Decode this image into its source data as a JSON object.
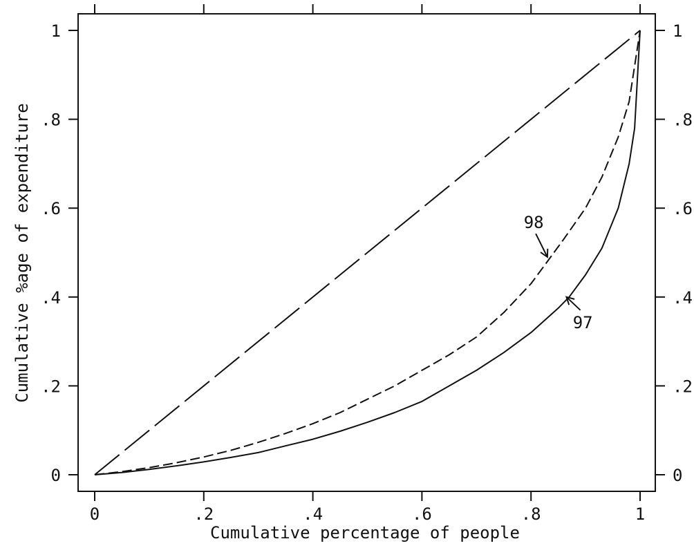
{
  "chart_data": {
    "type": "line",
    "xlabel": "Cumulative percentage of people",
    "ylabel": "Cumulative %age of expenditure",
    "xlim": [
      0,
      1
    ],
    "ylim": [
      0,
      1
    ],
    "x_ticks": [
      0,
      0.2,
      0.4,
      0.6,
      0.8,
      1
    ],
    "x_tick_labels": [
      "0",
      ".2",
      ".4",
      ".6",
      ".8",
      "1"
    ],
    "y_ticks": [
      0,
      0.2,
      0.4,
      0.6,
      0.8,
      1
    ],
    "y_tick_labels": [
      "0",
      ".2",
      ".4",
      ".6",
      ".8",
      "1"
    ],
    "grid": false,
    "mirror_axes": true,
    "series": [
      {
        "key": "equality",
        "style": "long-dash",
        "x": [
          0,
          1
        ],
        "y": [
          0,
          1
        ]
      },
      {
        "key": "98",
        "style": "short-dash",
        "x": [
          0,
          0.05,
          0.1,
          0.15,
          0.2,
          0.25,
          0.3,
          0.35,
          0.4,
          0.45,
          0.5,
          0.55,
          0.6,
          0.65,
          0.7,
          0.75,
          0.8,
          0.83,
          0.86,
          0.9,
          0.93,
          0.96,
          0.98,
          1
        ],
        "y": [
          0,
          0.007,
          0.016,
          0.027,
          0.04,
          0.055,
          0.073,
          0.093,
          0.115,
          0.14,
          0.17,
          0.2,
          0.235,
          0.27,
          0.31,
          0.365,
          0.43,
          0.48,
          0.53,
          0.6,
          0.67,
          0.76,
          0.84,
          1
        ]
      },
      {
        "key": "97",
        "style": "solid",
        "x": [
          0,
          0.05,
          0.1,
          0.15,
          0.2,
          0.25,
          0.3,
          0.35,
          0.4,
          0.45,
          0.5,
          0.55,
          0.6,
          0.65,
          0.7,
          0.75,
          0.8,
          0.85,
          0.87,
          0.9,
          0.93,
          0.96,
          0.98,
          0.99,
          1
        ],
        "y": [
          0,
          0.005,
          0.012,
          0.02,
          0.029,
          0.039,
          0.05,
          0.065,
          0.08,
          0.098,
          0.118,
          0.14,
          0.165,
          0.2,
          0.235,
          0.275,
          0.32,
          0.375,
          0.4,
          0.45,
          0.51,
          0.6,
          0.7,
          0.78,
          1
        ]
      }
    ],
    "annotations": [
      {
        "text": "98",
        "series": "98",
        "at": [
          0.83,
          0.49
        ],
        "label_at": [
          0.805,
          0.555
        ]
      },
      {
        "text": "97",
        "series": "97",
        "at": [
          0.865,
          0.4
        ],
        "label_at": [
          0.895,
          0.33
        ]
      }
    ]
  }
}
